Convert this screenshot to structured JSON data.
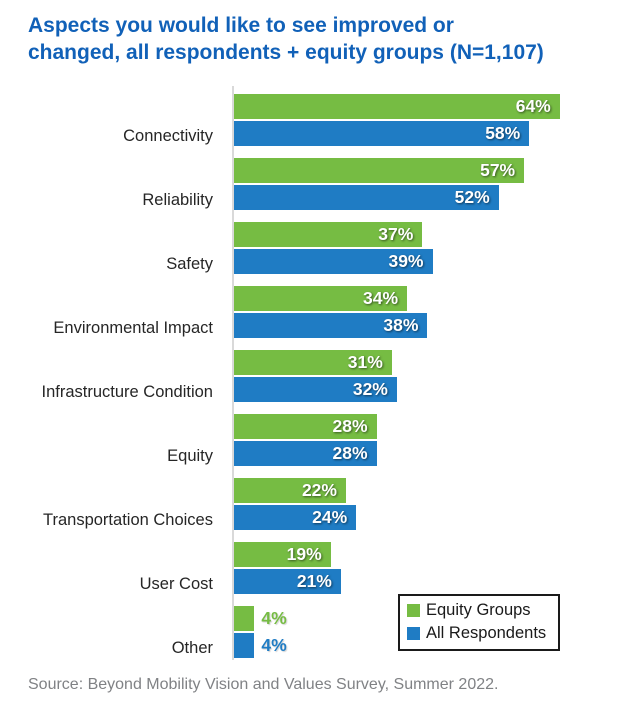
{
  "title": {
    "line1": "Aspects you would like to see improved or",
    "line2": "changed, all respondents + equity groups (N=1,107)"
  },
  "source": "Source: Beyond Mobility Vision and Values Survey, Summer 2022.",
  "colors": {
    "title": "#1161B8",
    "equity_groups": "#76BC43",
    "all_respondents": "#1F7CC4",
    "axis_line": "#D9D9D9",
    "source_text": "#808285"
  },
  "chart_data": {
    "type": "bar",
    "orientation": "horizontal",
    "title": "Aspects you would like to see improved or changed, all respondents + equity groups (N=1,107)",
    "categories": [
      "Connectivity",
      "Reliability",
      "Safety",
      "Environmental Impact",
      "Infrastructure Condition",
      "Equity",
      "Transportation Choices",
      "User Cost",
      "Other"
    ],
    "series": [
      {
        "name": "Equity Groups",
        "color": "#76BC43",
        "values": [
          64,
          57,
          37,
          34,
          31,
          28,
          22,
          19,
          4
        ]
      },
      {
        "name": "All Respondents",
        "color": "#1F7CC4",
        "values": [
          58,
          52,
          39,
          38,
          32,
          28,
          24,
          21,
          4
        ]
      }
    ],
    "value_suffix": "%",
    "value_labels": "on",
    "xlim": [
      0,
      75
    ],
    "grid": false,
    "legend_position": "bottom-right"
  }
}
